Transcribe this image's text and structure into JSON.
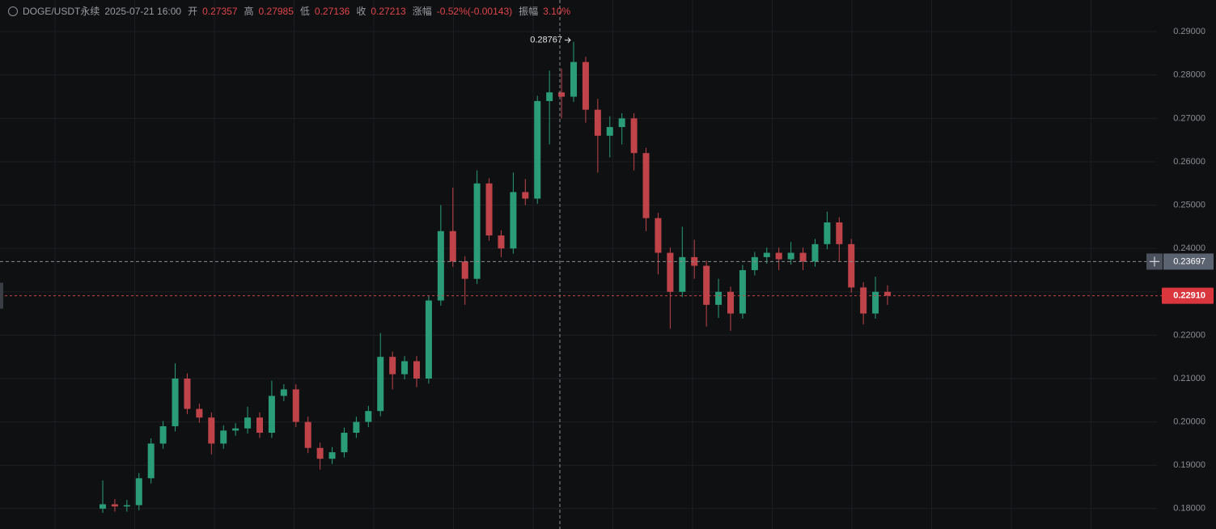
{
  "chart_data": {
    "type": "candlestick",
    "title": "DOGE/USDT永续",
    "time": "2025-07-21 16:00",
    "stats": [
      {
        "label": "开",
        "value": "0.27357"
      },
      {
        "label": "高",
        "value": "0.27985"
      },
      {
        "label": "低",
        "value": "0.27136"
      },
      {
        "label": "收",
        "value": "0.27213"
      },
      {
        "label": "涨幅",
        "value": "-0.52%(-0.00143)"
      },
      {
        "label": "振幅",
        "value": "3.10%"
      }
    ],
    "up_color": "#2a9d78",
    "down_color": "#c0434a",
    "open": [
      0.18,
      0.181,
      0.1805,
      0.1808,
      0.187,
      0.195,
      0.199,
      0.21,
      0.203,
      0.201,
      0.195,
      0.198,
      0.1985,
      0.201,
      0.1975,
      0.206,
      0.2075,
      0.2,
      0.194,
      0.1915,
      0.193,
      0.1975,
      0.2,
      0.2025,
      0.215,
      0.211,
      0.214,
      0.21,
      0.228,
      0.244,
      0.237,
      0.233,
      0.255,
      0.243,
      0.24,
      0.253,
      0.2515,
      0.274,
      0.276,
      0.275,
      0.283,
      0.272,
      0.266,
      0.268,
      0.27,
      0.262,
      0.247,
      0.239,
      0.23,
      0.238,
      0.236,
      0.227,
      0.23,
      0.225,
      0.235,
      0.238,
      0.239,
      0.2375,
      0.239,
      0.237,
      0.241,
      0.246,
      0.241,
      0.231,
      0.225,
      0.23
    ],
    "high": [
      0.1865,
      0.1822,
      0.182,
      0.1882,
      0.1962,
      0.2002,
      0.2135,
      0.2112,
      0.2042,
      0.2022,
      0.1992,
      0.1997,
      0.2035,
      0.2022,
      0.2095,
      0.2087,
      0.2087,
      0.2012,
      0.1952,
      0.1942,
      0.1987,
      0.2012,
      0.2037,
      0.2205,
      0.2162,
      0.2152,
      0.2152,
      0.2292,
      0.25,
      0.254,
      0.2382,
      0.258,
      0.2562,
      0.2442,
      0.2575,
      0.256,
      0.2752,
      0.281,
      0.2815,
      0.28767,
      0.2842,
      0.2745,
      0.2705,
      0.2712,
      0.2712,
      0.2632,
      0.2482,
      0.2402,
      0.245,
      0.242,
      0.2372,
      0.233,
      0.2312,
      0.2362,
      0.2392,
      0.2402,
      0.2402,
      0.2415,
      0.2402,
      0.2422,
      0.2485,
      0.2472,
      0.2422,
      0.2322,
      0.2335,
      0.2315
    ],
    "low": [
      0.179,
      0.1793,
      0.1793,
      0.1796,
      0.1858,
      0.1938,
      0.1978,
      0.2018,
      0.1998,
      0.1925,
      0.1938,
      0.1968,
      0.1973,
      0.1963,
      0.1963,
      0.2048,
      0.1988,
      0.1928,
      0.189,
      0.1903,
      0.1918,
      0.1963,
      0.1988,
      0.2013,
      0.2075,
      0.2098,
      0.208,
      0.2088,
      0.2268,
      0.2358,
      0.227,
      0.2318,
      0.2418,
      0.238,
      0.2388,
      0.25,
      0.2503,
      0.264,
      0.27,
      0.2738,
      0.269,
      0.2575,
      0.261,
      0.264,
      0.258,
      0.244,
      0.234,
      0.2215,
      0.2288,
      0.233,
      0.222,
      0.224,
      0.221,
      0.2238,
      0.2338,
      0.2365,
      0.235,
      0.2363,
      0.235,
      0.2358,
      0.2398,
      0.237,
      0.2298,
      0.2225,
      0.2238,
      0.227
    ],
    "close": [
      0.181,
      0.1805,
      0.1808,
      0.187,
      0.195,
      0.199,
      0.21,
      0.203,
      0.201,
      0.195,
      0.198,
      0.1985,
      0.201,
      0.1975,
      0.206,
      0.2075,
      0.2,
      0.194,
      0.1915,
      0.193,
      0.1975,
      0.2,
      0.2025,
      0.215,
      0.211,
      0.214,
      0.21,
      0.228,
      0.244,
      0.237,
      0.233,
      0.255,
      0.243,
      0.24,
      0.253,
      0.2515,
      0.274,
      0.276,
      0.275,
      0.283,
      0.272,
      0.266,
      0.268,
      0.27,
      0.262,
      0.247,
      0.239,
      0.23,
      0.238,
      0.236,
      0.227,
      0.23,
      0.225,
      0.235,
      0.238,
      0.239,
      0.2375,
      0.239,
      0.237,
      0.241,
      0.246,
      0.241,
      0.231,
      0.225,
      0.23,
      0.2291
    ],
    "high_mark": 39,
    "ylim": [
      0.1753,
      0.2973
    ],
    "yticks": [
      {
        "value": 0.18,
        "label": "0.18000"
      },
      {
        "value": 0.19,
        "label": "0.19000"
      },
      {
        "value": 0.2,
        "label": "0.20000"
      },
      {
        "value": 0.21,
        "label": "0.21000"
      },
      {
        "value": 0.22,
        "label": "0.22000"
      },
      {
        "value": 0.23,
        "label": "0.23000"
      },
      {
        "value": 0.24,
        "label": "0.24000"
      },
      {
        "value": 0.25,
        "label": "0.25000"
      },
      {
        "value": 0.26,
        "label": "0.26000"
      },
      {
        "value": 0.27,
        "label": "0.27000"
      },
      {
        "value": 0.28,
        "label": "0.28000"
      },
      {
        "value": 0.29,
        "label": "0.29000"
      }
    ],
    "grid": true,
    "crosshair": 0.23697,
    "last_price": {
      "value": 0.2291,
      "label": "0.22910"
    }
  }
}
